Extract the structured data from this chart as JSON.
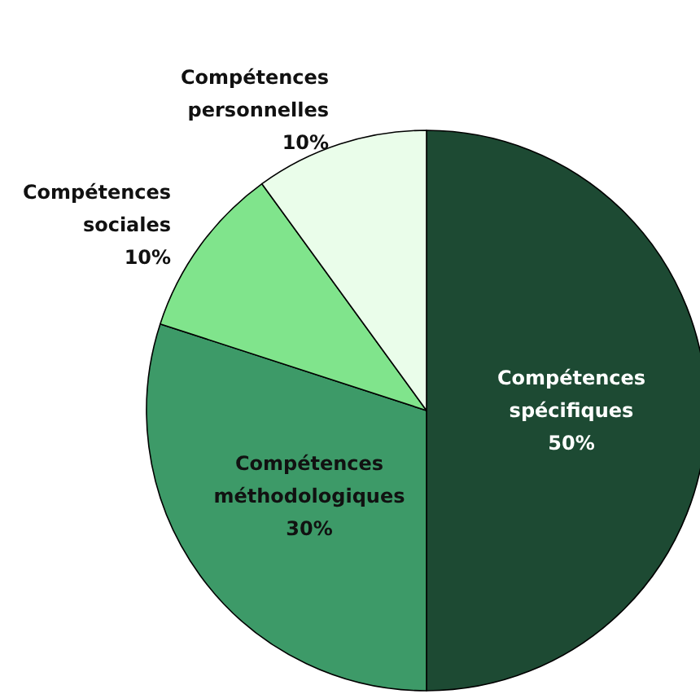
{
  "chart_data": {
    "type": "pie",
    "categories": [
      "Compétences spécifiques",
      "Compétences méthodologiques",
      "Compétences sociales",
      "Compétences personnelles"
    ],
    "values": [
      50,
      30,
      10,
      10
    ],
    "value_labels": [
      "50%",
      "30%",
      "10%",
      "10%"
    ],
    "colors": [
      "#1d4a33",
      "#3d9a68",
      "#80e48c",
      "#eafdea"
    ],
    "legend": false
  }
}
